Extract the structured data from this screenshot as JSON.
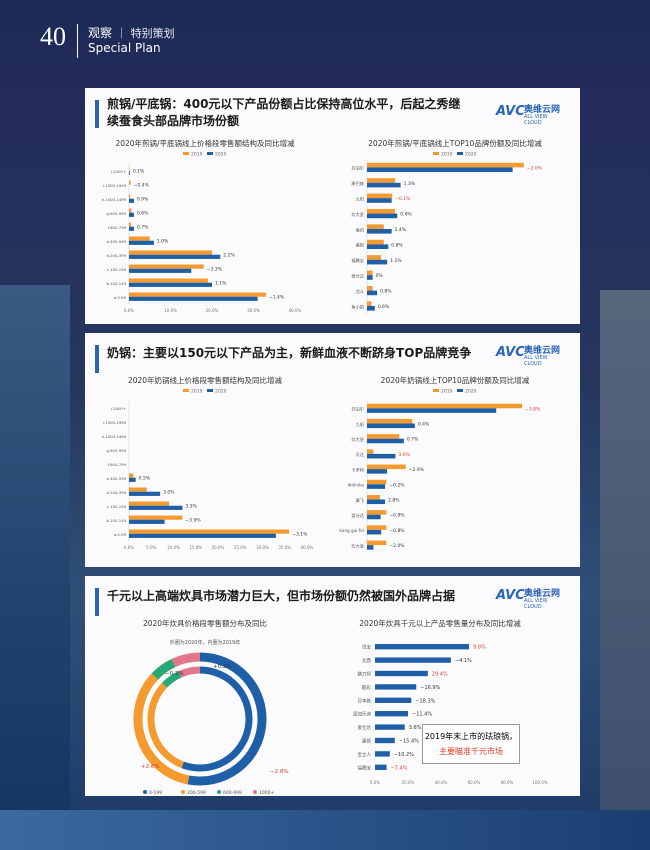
{
  "header": {
    "page_number": "40",
    "section": "观察",
    "subsection": "特别策划",
    "section_en": "Special Plan"
  },
  "sec1": {
    "title": "煎锅/平底锅：400元以下产品份额占比保持高位水平，后起之秀继续蚕食头部品牌市场份额",
    "logo": {
      "mark": "AVC",
      "cn": "奥维云网",
      "en": "ALL VIEW CLOUD"
    }
  },
  "sec2": {
    "title": "奶锅：主要以150元以下产品为主，新鲜血液不断跻身TOP品牌竞争"
  },
  "sec3": {
    "title": "千元以上高端炊具市场潜力巨大，但市场份额仍然被国外品牌占据",
    "note_line1": "2019年末上市的珐琅锅，",
    "note_line2": "主要瞄准千元市场"
  },
  "colors": {
    "c2019": "#f59a2f",
    "c2020": "#1f5fa8",
    "red": "#e23b2a",
    "blue": "#2a64b5"
  },
  "chart_data": [
    {
      "type": "bar",
      "title": "2020年煎锅/平底锅线上价格段零售额结构及同比增减",
      "legend": [
        "2019",
        "2020"
      ],
      "categories": [
        "a.0-99",
        "b.100-149",
        "c.150-199",
        "d.200-399",
        "e.400-599",
        "f.600-799",
        "g.800-999",
        "h.1000-1499",
        "i.1500-1999",
        "j.2000+"
      ],
      "series": [
        {
          "name": "2019",
          "values": [
            33,
            19,
            18,
            20,
            5,
            0.5,
            0.6,
            0.3,
            0.4,
            0.1
          ]
        },
        {
          "name": "2020",
          "values": [
            31,
            20,
            15,
            22,
            6,
            1.2,
            1.2,
            1.2,
            0,
            0.2
          ]
        }
      ],
      "annotations": [
        "−1.4%",
        "1.1%",
        "−3.3%",
        "2.2%",
        "1.0%",
        "0.7%",
        "0.6%",
        "0.9%",
        "−0.4%",
        "0.1%"
      ],
      "ticks": [
        "0.0%",
        "10.0%",
        "20.0%",
        "30.0%",
        "40.0%"
      ],
      "xlim": [
        0,
        40
      ]
    },
    {
      "type": "bar",
      "title": "2020年煎锅/平底锅线上TOP10品牌份额及同比增减",
      "legend": [
        "2019",
        "2020"
      ],
      "categories": [
        "苏泊尔",
        "康巴赫",
        "九阳",
        "炊大皇",
        "美的",
        "美厨",
        "福腾宝",
        "爱仕达",
        "北斗",
        "鱼小厨"
      ],
      "series": [
        {
          "name": "2019",
          "values": [
            28,
            5,
            4.5,
            5,
            3,
            3,
            2.5,
            1,
            1,
            0.8
          ]
        },
        {
          "name": "2020",
          "values": [
            26,
            6,
            4.4,
            5.4,
            4.4,
            3.8,
            3.6,
            1,
            1.8,
            1.4
          ]
        }
      ],
      "annotations": [
        "−2.0%",
        "1.3%",
        "−0.1%",
        "0.4%",
        "1.4%",
        "0.8%",
        "1.1%",
        "0%",
        "0.8%",
        "0.6%"
      ],
      "red_idx": [
        0,
        2
      ]
    },
    {
      "type": "bar",
      "title": "2020年奶锅线上价格段零售额结构及同比增减",
      "legend": [
        "2019",
        "2020"
      ],
      "categories": [
        "a.0-99",
        "b.100-149",
        "c.150-199",
        "d.200-399",
        "e.400-599",
        "f.600-799",
        "g.800-999",
        "h.1000-1499",
        "i.1500-1999",
        "j.2000+"
      ],
      "series": [
        {
          "name": "2019",
          "values": [
            36,
            12,
            9,
            4,
            1,
            0,
            0,
            0,
            0,
            0
          ]
        },
        {
          "name": "2020",
          "values": [
            33,
            8,
            12,
            7,
            1.5,
            0,
            0,
            0,
            0,
            0
          ]
        }
      ],
      "annotations": [
        "−3.1%",
        "−3.9%",
        "3.3%",
        "3.0%",
        "0.5%",
        "",
        "",
        "",
        "",
        ""
      ],
      "ticks": [
        "0.0%",
        "5.0%",
        "10.0%",
        "15.0%",
        "20.0%",
        "25.0%",
        "30.0%",
        "35.0%",
        "40.0%"
      ],
      "xlim": [
        0,
        40
      ]
    },
    {
      "type": "bar",
      "title": "2020年奶锅线上TOP10品牌份额及同比增减",
      "legend": [
        "2019",
        "2020"
      ],
      "categories": [
        "苏泊尔",
        "九阳",
        "炊大皇",
        "贝达",
        "卡罗特",
        "didinika",
        "摩飞",
        "爱仕达",
        "kang gui fei",
        "炊大皇"
      ],
      "series": [
        {
          "name": "2019",
          "values": [
            24,
            7,
            5,
            1,
            6,
            3,
            2,
            3,
            3,
            3
          ]
        },
        {
          "name": "2020",
          "values": [
            20,
            7.4,
            5.7,
            4.4,
            3.1,
            2.8,
            2.8,
            2.1,
            2.2,
            1
          ]
        }
      ],
      "annotations": [
        "−3.8%",
        "0.4%",
        "0.7%",
        "3.6%",
        "−2.9%",
        "−0.2%",
        "2.8%",
        "−0.9%",
        "−0.8%",
        "−2.0%"
      ],
      "red_idx": [
        0,
        3
      ]
    },
    {
      "type": "pie",
      "title": "2020年炊具价格段零售额分布及同比",
      "subtitle": "外圈为2020年，内圈为2019年",
      "categories": [
        "0-199",
        "200-599",
        "600-999",
        "1000+"
      ],
      "outer": [
        53,
        34,
        6,
        7
      ],
      "inner": [
        55.8,
        31.4,
        6.2,
        6.7
      ],
      "annotations": [
        "+0.3%",
        "−0.2%",
        "+2.6%",
        "−2.8%"
      ],
      "colors": [
        "#1f5fa8",
        "#f59a2f",
        "#2aa873",
        "#e0788a"
      ]
    },
    {
      "type": "bar",
      "title": "2020年炊具千元以上产品零售量分布及同比增减",
      "categories": [
        "珐宝",
        "北鼎",
        "膳刀师",
        "酷彩",
        "日本铁",
        "富加乐迪",
        "爱仕达",
        "康顿",
        "宝立人",
        "福腾宝"
      ],
      "values": [
        57,
        46,
        32,
        25,
        22,
        20,
        18,
        12,
        9,
        7
      ],
      "annotations": [
        "9.8%",
        "−4.1%",
        "29.4%",
        "−16.9%",
        "−18.3%",
        "−11.4%",
        "3.6%",
        "−15.4%",
        "−10.2%",
        "−7.4%"
      ],
      "red_idx": [
        0,
        2,
        9
      ],
      "ticks": [
        "0.0%",
        "20.0%",
        "40.0%",
        "60.0%",
        "80.0%",
        "100.0%"
      ],
      "xlim": [
        0,
        100
      ]
    }
  ]
}
